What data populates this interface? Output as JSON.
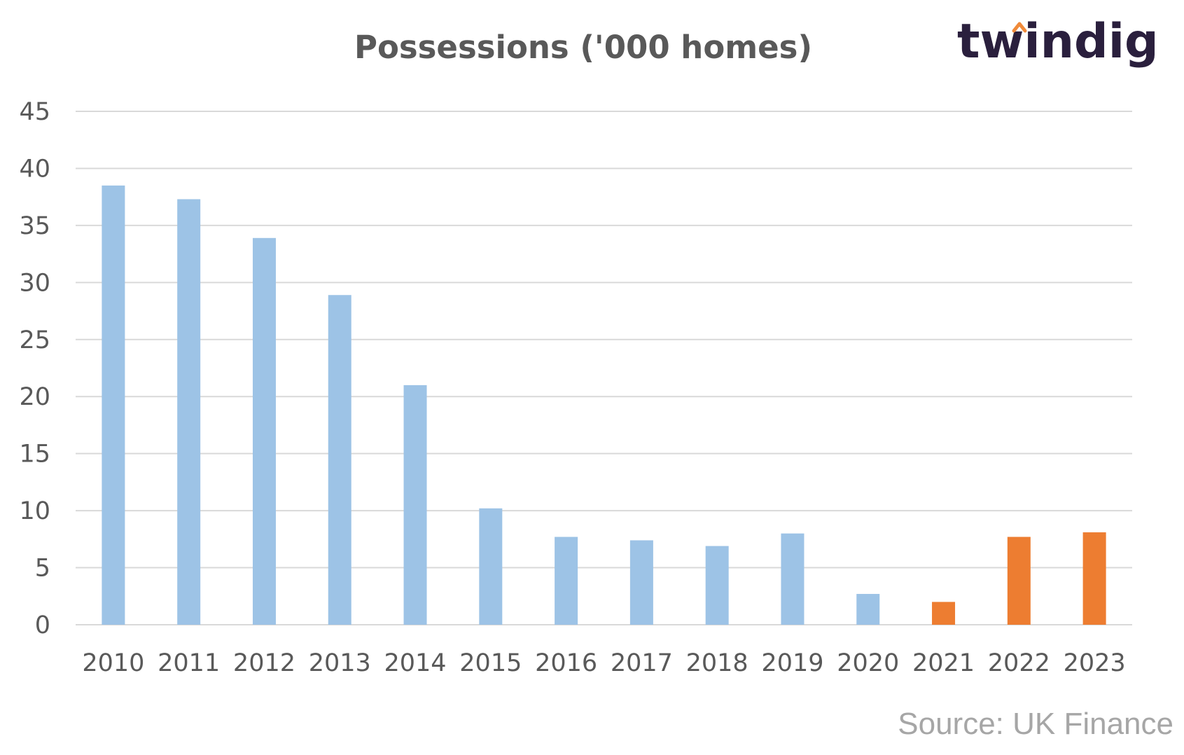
{
  "brand": {
    "name": "twindig",
    "accent": "#f08a3a",
    "color": "#2a1f3d"
  },
  "source_note": "Source: UK Finance",
  "chart_data": {
    "type": "bar",
    "title": "Possessions ('000 homes)",
    "xlabel": "",
    "ylabel": "",
    "categories": [
      "2010",
      "2011",
      "2012",
      "2013",
      "2014",
      "2015",
      "2016",
      "2017",
      "2018",
      "2019",
      "2020",
      "2021",
      "2022",
      "2023"
    ],
    "values": [
      38.5,
      37.3,
      33.9,
      28.9,
      21.0,
      10.2,
      7.7,
      7.4,
      6.9,
      8.0,
      2.7,
      2.0,
      7.7,
      8.1
    ],
    "ylim": [
      0,
      45
    ],
    "yticks": [
      0,
      5,
      10,
      15,
      20,
      25,
      30,
      35,
      40,
      45
    ],
    "grid": true,
    "legend": "none",
    "colors": {
      "historic": "#9dc3e6",
      "highlight": "#ed7d31",
      "grid": "#d9d9d9",
      "text": "#595959"
    },
    "highlight_categories": [
      "2021",
      "2022",
      "2023"
    ]
  }
}
